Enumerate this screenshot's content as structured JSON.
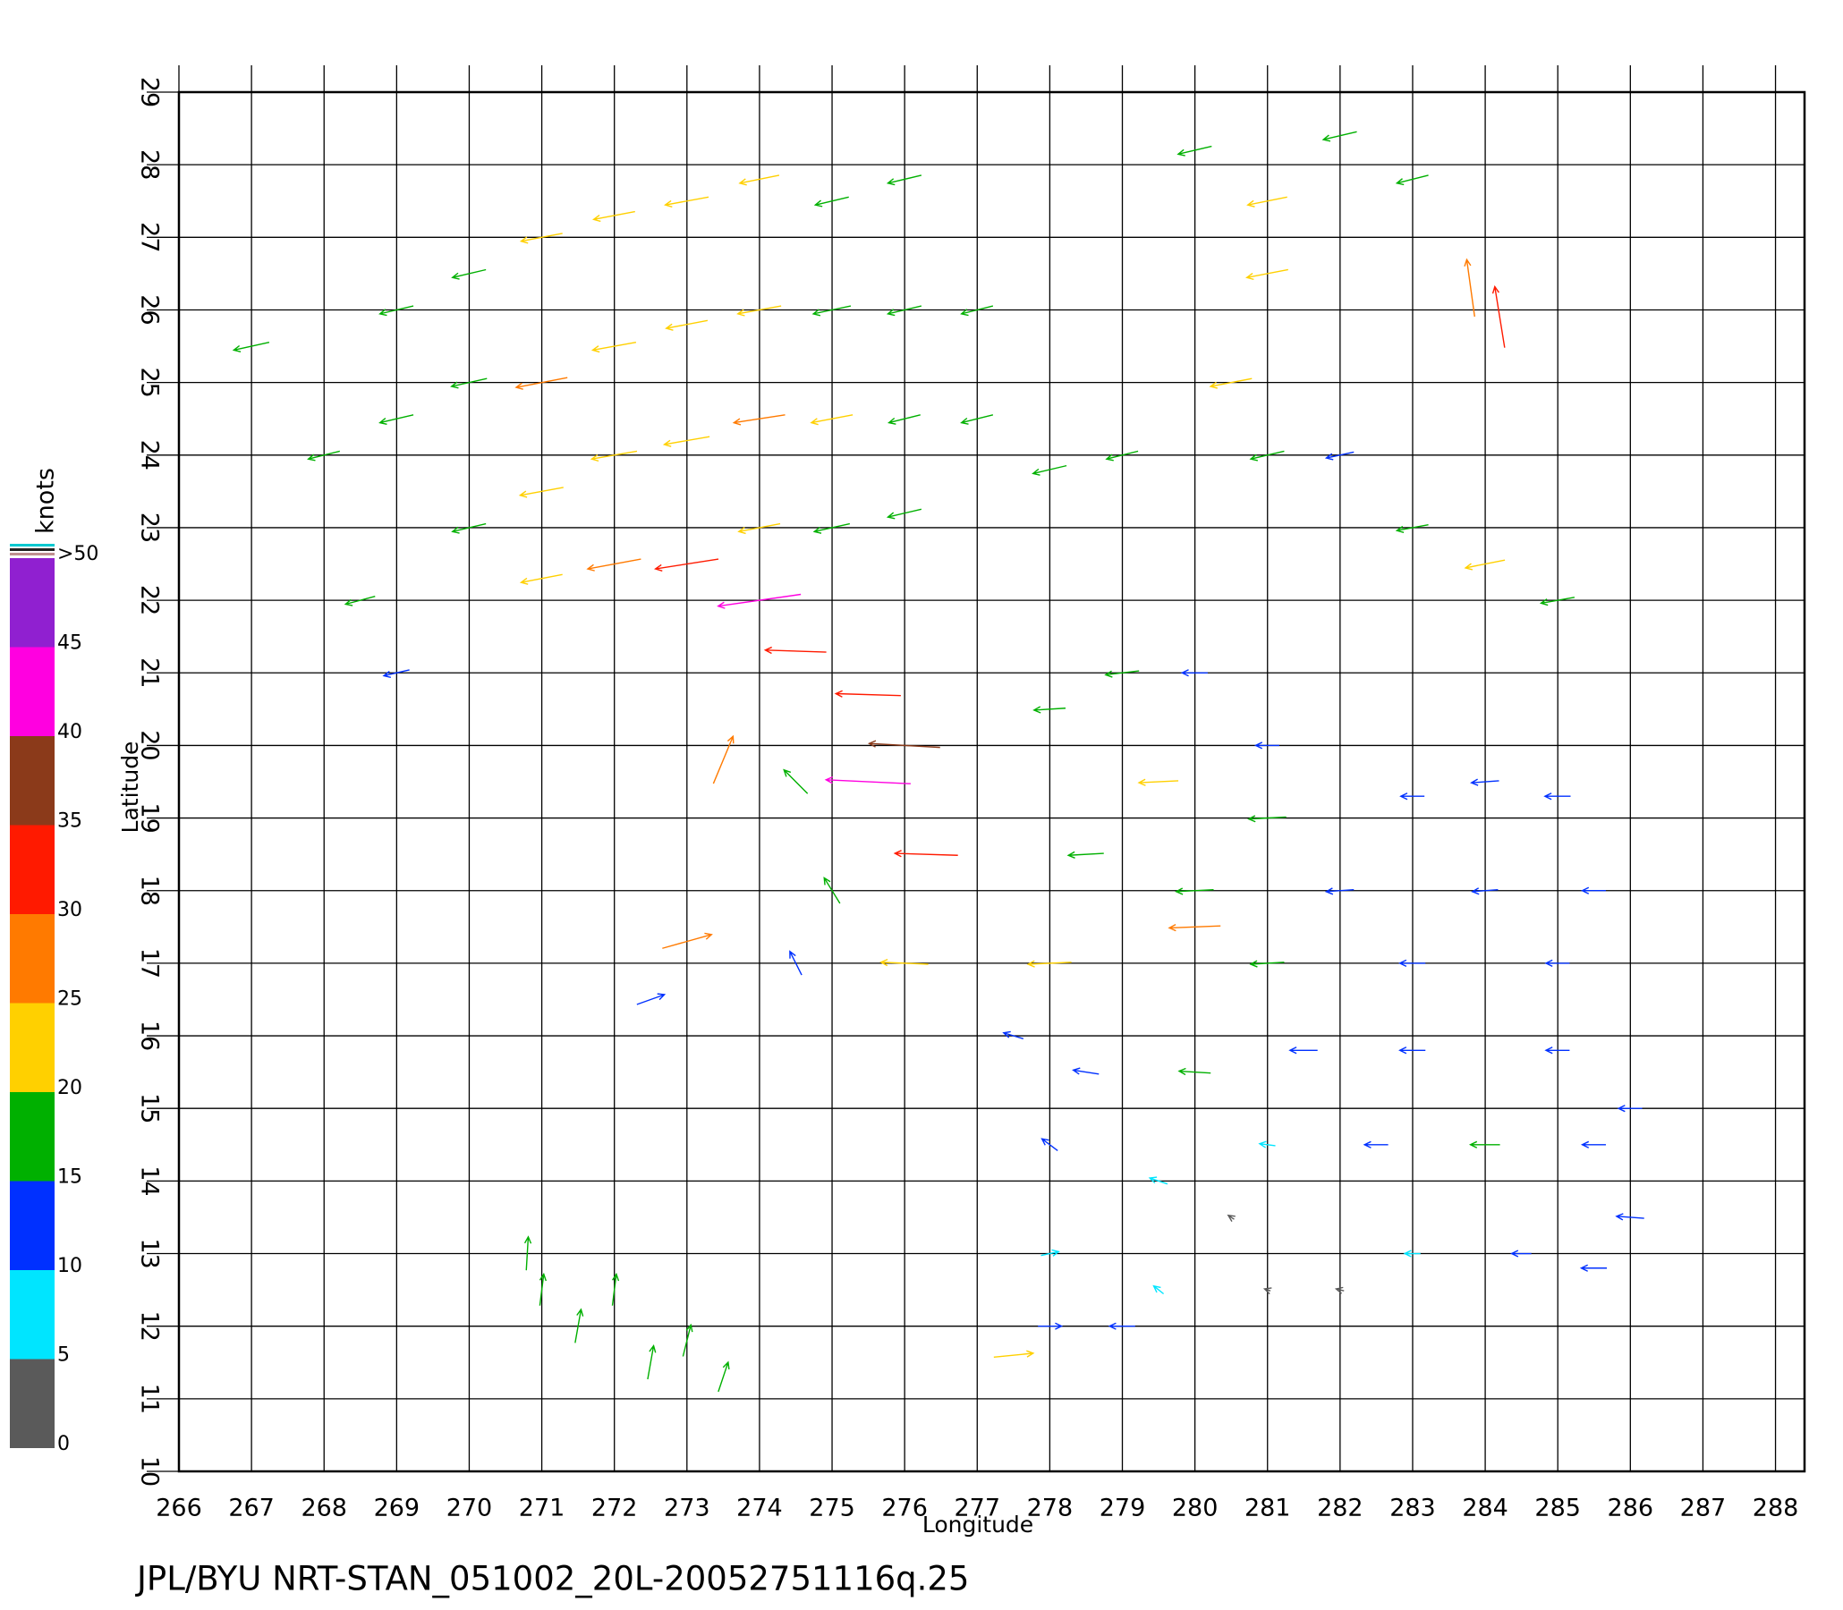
{
  "chart_data": {
    "type": "quiver",
    "title": "JPL/BYU NRT-STAN_051002_20L-20052751116q.25",
    "x_label": "Longitude",
    "y_label": "Latitude",
    "xlim": [
      266,
      288.4
    ],
    "ylim": [
      10,
      29
    ],
    "xticks": [
      266,
      267,
      268,
      269,
      270,
      271,
      272,
      273,
      274,
      275,
      276,
      277,
      278,
      279,
      280,
      281,
      282,
      283,
      284,
      285,
      286,
      287,
      288
    ],
    "yticks": [
      10,
      11,
      12,
      13,
      14,
      15,
      16,
      17,
      18,
      19,
      20,
      21,
      22,
      23,
      24,
      25,
      26,
      27,
      28,
      29
    ],
    "grid": true,
    "colorbar": {
      "label": "knots",
      "lim": [
        0,
        50
      ],
      "ticks": [
        0,
        5,
        10,
        15,
        20,
        25,
        30,
        35,
        40,
        45,
        {
          "value": 50,
          "label": ">50"
        }
      ],
      "colors": [
        "#5a5a5a",
        "#00e5ff",
        "#0030ff",
        "#00b000",
        "#ffd000",
        "#ff7a00",
        "#ff1a00",
        "#8b3a1a",
        "#ff00e0",
        "#9020d0"
      ]
    },
    "x": [
      267,
      268,
      268.5,
      269,
      269,
      269,
      270,
      270,
      270,
      271,
      271,
      271,
      271,
      272,
      272,
      272,
      272,
      273,
      273,
      273,
      273,
      274,
      274,
      274,
      274,
      274,
      275,
      275,
      275,
      275,
      276,
      276,
      276,
      276,
      277,
      277,
      280,
      281,
      282,
      283,
      281,
      280.5,
      281,
      282,
      283,
      284,
      285,
      283.8,
      284.2,
      278,
      279,
      274.5,
      275.5,
      276,
      275.5,
      276.3,
      273.5,
      274.5,
      275,
      274.5,
      276,
      273,
      272.5,
      278,
      279,
      280,
      281,
      279.5,
      281,
      283,
      284,
      285,
      278.5,
      280,
      282,
      284,
      285.5,
      278,
      280,
      281,
      283,
      285,
      277.5,
      278.5,
      280,
      281.5,
      283,
      285,
      286,
      278,
      279.5,
      281,
      282.5,
      284,
      285.5,
      286,
      278,
      279.5,
      280.5,
      281,
      282,
      283,
      284.5,
      285.5,
      278,
      279,
      277.5,
      271,
      271.5,
      272,
      272.5,
      273,
      273.5,
      270.8
    ],
    "y": [
      25.5,
      24,
      22,
      26,
      24.5,
      21,
      26.5,
      25,
      23,
      27,
      25,
      23.5,
      22.3,
      27.3,
      25.5,
      24,
      22.5,
      27.5,
      25.8,
      24.2,
      22.5,
      27.8,
      26,
      24.5,
      23,
      22,
      27.5,
      26,
      24.5,
      23,
      27.8,
      26,
      24.5,
      23.2,
      26,
      24.5,
      28.2,
      27.5,
      28.4,
      27.8,
      26.5,
      25,
      24,
      24,
      23,
      22.5,
      22,
      26.3,
      25.9,
      23.8,
      24,
      21.3,
      20.7,
      20,
      19.5,
      18.5,
      19.8,
      19.5,
      18,
      17,
      17,
      17.3,
      16.5,
      20.5,
      21,
      21,
      20,
      19.5,
      19,
      19.3,
      19.5,
      19.3,
      18.5,
      18,
      18,
      18,
      18,
      17,
      17.5,
      17,
      17,
      17,
      16,
      15.5,
      15.5,
      15.8,
      15.8,
      15.8,
      15,
      14.5,
      14,
      14.5,
      14.5,
      14.5,
      14.5,
      13.5,
      13,
      12.5,
      13.5,
      12.5,
      12.5,
      13,
      13,
      12.8,
      12,
      12,
      11.6,
      12.5,
      12,
      12.5,
      11.5,
      11.8,
      11.3,
      13
    ],
    "u": [
      -18,
      -16,
      -15,
      -17,
      -17,
      -13,
      -17,
      -18,
      -17,
      -21,
      -26,
      -22,
      -21,
      -21,
      -22,
      -23,
      -27,
      -22,
      -21,
      -23,
      -32,
      -20,
      -22,
      -26,
      -21,
      -42,
      -17,
      -19,
      -21,
      -18,
      -17,
      -17,
      -16,
      -17,
      -16,
      -16,
      -17,
      -20,
      -17,
      -16,
      -21,
      -21,
      -17,
      -14,
      -16,
      -20,
      -17,
      -4,
      -5,
      -17,
      -16,
      -31,
      -33,
      -36,
      -43,
      -32,
      10,
      -12,
      -8,
      -6,
      -24,
      25,
      14,
      -16,
      -17,
      -13,
      -12,
      -20,
      -19,
      -12,
      -14,
      -13,
      -18,
      -19,
      -14,
      -13,
      -12,
      -22,
      -26,
      -17,
      -13,
      -12,
      -10,
      -13,
      -16,
      -14,
      -13,
      -12,
      -12,
      -8,
      -9,
      -8,
      -12,
      -15,
      -12,
      -14,
      9,
      -5,
      -3,
      -3,
      -4,
      -8,
      -10,
      -13,
      12,
      -13,
      20,
      2,
      3,
      2,
      3,
      4,
      5,
      1
    ],
    "v": [
      -4,
      -4,
      -4,
      -4,
      -4,
      -3,
      -4,
      -4,
      -4,
      -4,
      -5,
      -4,
      -4,
      -4,
      -4,
      -4,
      -5,
      -4,
      -4,
      -4,
      -5,
      -4,
      -4,
      -4,
      -4,
      -6,
      -4,
      -4,
      -4,
      -4,
      -4,
      -4,
      -4,
      -4,
      -4,
      -4,
      -4,
      -4,
      -4,
      -4,
      -4,
      -4,
      -4,
      -3,
      -3,
      -4,
      -3,
      29,
      31,
      -4,
      -4,
      1,
      1,
      2,
      2,
      1,
      24,
      12,
      13,
      12,
      1,
      7,
      5,
      -1,
      -2,
      0,
      0,
      -1,
      -1,
      0,
      -1,
      0,
      -1,
      -1,
      -1,
      -1,
      0,
      -1,
      -1,
      -1,
      0,
      0,
      3,
      2,
      1,
      0,
      0,
      0,
      0,
      6,
      3,
      1,
      0,
      0,
      0,
      1,
      2,
      4,
      2,
      1,
      1,
      0,
      0,
      0,
      0,
      0,
      2,
      16,
      17,
      16,
      17,
      16,
      15,
      17
    ]
  }
}
